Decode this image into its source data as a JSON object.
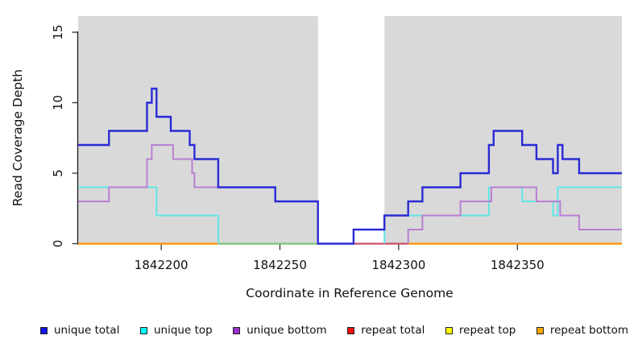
{
  "chart_data": {
    "type": "line",
    "subtype": "step-coverage",
    "title": "",
    "xlabel": "Coordinate in Reference Genome",
    "ylabel": "Read Coverage Depth",
    "x_range": [
      1842165,
      1842394
    ],
    "y_range": [
      0,
      16
    ],
    "x_ticks": [
      1842200,
      1842250,
      1842300,
      1842350
    ],
    "y_ticks": [
      0,
      5,
      10,
      15
    ],
    "grid": false,
    "colors": {
      "panel_shading": "#d9d9d9",
      "axis": "#1a1a1a",
      "tick": "#333333"
    },
    "shaded_regions": [
      {
        "x1": 1842165,
        "x2": 1842266
      },
      {
        "x1": 1842294,
        "x2": 1842394
      }
    ],
    "gap_region": {
      "x1": 1842266,
      "x2": 1842294
    },
    "baseline_overlap": [
      {
        "x1": 1842224,
        "x2": 1842266,
        "y": 0,
        "color": "#7cc87c",
        "note": "blended color where unique-top / repeat-top lines coincide at depth 0"
      }
    ],
    "series": [
      {
        "name": "unique total",
        "color": "#2a2ad6",
        "width": 2.4,
        "z": 6,
        "segments": [
          [
            [
              1842165,
              7
            ],
            [
              1842178,
              8
            ],
            [
              1842194,
              10
            ],
            [
              1842196,
              11
            ],
            [
              1842198,
              9
            ],
            [
              1842204,
              8
            ],
            [
              1842212,
              7
            ],
            [
              1842214,
              6
            ],
            [
              1842224,
              4
            ],
            [
              1842248,
              3
            ],
            [
              1842266,
              0
            ],
            [
              1842281,
              1
            ],
            [
              1842294,
              2
            ],
            [
              1842304,
              3
            ],
            [
              1842310,
              4
            ],
            [
              1842326,
              5
            ],
            [
              1842338,
              7
            ],
            [
              1842340,
              8
            ],
            [
              1842352,
              7
            ],
            [
              1842358,
              6
            ],
            [
              1842365,
              5
            ],
            [
              1842367,
              7
            ],
            [
              1842369,
              6
            ],
            [
              1842376,
              5
            ],
            [
              1842394,
              5
            ]
          ]
        ]
      },
      {
        "name": "unique top",
        "color": "#63e6e6",
        "width": 2.0,
        "z": 4,
        "segments": [
          [
            [
              1842165,
              4
            ],
            [
              1842198,
              2
            ],
            [
              1842224,
              0
            ]
          ],
          [
            [
              1842294,
              0
            ],
            [
              1842294,
              2
            ],
            [
              1842338,
              4
            ],
            [
              1842352,
              3
            ],
            [
              1842365,
              2
            ],
            [
              1842367,
              4
            ],
            [
              1842394,
              4
            ]
          ]
        ]
      },
      {
        "name": "unique bottom",
        "color": "#b87fd2",
        "width": 2.0,
        "z": 5,
        "segments": [
          [
            [
              1842165,
              3
            ],
            [
              1842178,
              4
            ],
            [
              1842194,
              6
            ],
            [
              1842196,
              7
            ],
            [
              1842205,
              6
            ],
            [
              1842213,
              5
            ],
            [
              1842214,
              4
            ],
            [
              1842248,
              3
            ],
            [
              1842266,
              0
            ]
          ],
          [
            [
              1842304,
              0
            ],
            [
              1842304,
              1
            ],
            [
              1842310,
              2
            ],
            [
              1842326,
              3
            ],
            [
              1842339,
              4
            ],
            [
              1842358,
              3
            ],
            [
              1842368,
              2
            ],
            [
              1842376,
              1
            ],
            [
              1842394,
              1
            ]
          ]
        ]
      },
      {
        "name": "repeat total",
        "color": "#d04f6e",
        "width": 2.2,
        "z": 2,
        "segments": [
          [
            [
              1842281,
              0
            ],
            [
              1842304,
              0
            ]
          ]
        ]
      },
      {
        "name": "repeat top",
        "color": "#ffff00",
        "width": 2.0,
        "z": 1,
        "segments": []
      },
      {
        "name": "repeat bottom",
        "color": "#ff9a14",
        "width": 2.4,
        "z": 3,
        "segments": [
          [
            [
              1842165,
              0
            ],
            [
              1842224,
              0
            ]
          ],
          [
            [
              1842304,
              0
            ],
            [
              1842394,
              0
            ]
          ]
        ]
      }
    ]
  },
  "legend": {
    "items": [
      {
        "label": "unique total",
        "swatch": "#1414e6"
      },
      {
        "label": "unique top",
        "swatch": "#00ffff"
      },
      {
        "label": "unique bottom",
        "swatch": "#9a32cc"
      },
      {
        "label": "repeat total",
        "swatch": "#ee1111"
      },
      {
        "label": "repeat top",
        "swatch": "#ffff00"
      },
      {
        "label": "repeat bottom",
        "swatch": "#ffa500"
      }
    ]
  }
}
